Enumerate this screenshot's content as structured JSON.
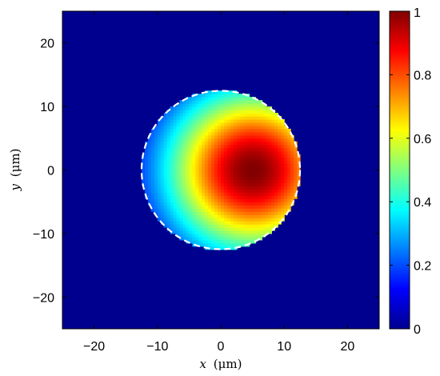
{
  "chart_data": {
    "type": "heatmap",
    "title": "",
    "xlabel": {
      "var": "x",
      "unit": "(μm)"
    },
    "ylabel": {
      "var": "y",
      "unit": "(μm)"
    },
    "xlim": [
      -25,
      25
    ],
    "ylim": [
      -25,
      25
    ],
    "x_ticks": [
      -20,
      -10,
      0,
      10,
      20
    ],
    "y_ticks": [
      -20,
      -10,
      0,
      10,
      20
    ],
    "x_tick_labels": [
      "−20",
      "−10",
      "0",
      "10",
      "20"
    ],
    "y_tick_labels": [
      "−20",
      "−10",
      "0",
      "10",
      "20"
    ],
    "colormap": "jet",
    "colorbar": {
      "range": [
        0,
        1
      ],
      "ticks": [
        0,
        0.2,
        0.4,
        0.6,
        0.8,
        1
      ],
      "tick_labels": [
        "0",
        "0.2",
        "0.4",
        "0.6",
        "0.8",
        "1"
      ]
    },
    "field": {
      "description_of_shape": "bright off-centre spot inside circular aperture",
      "aperture_center": [
        0,
        0
      ],
      "aperture_radius": 12.5,
      "peak_center": [
        5,
        0
      ],
      "peak_value": 1.0,
      "value_at_left_edge": 0.2,
      "outside_value": 0
    },
    "boundary_circle": {
      "center": [
        0,
        0
      ],
      "radius": 12.5,
      "style": "dashed",
      "color": "#ffffff"
    },
    "grid": false,
    "background_color": "#00008f"
  }
}
